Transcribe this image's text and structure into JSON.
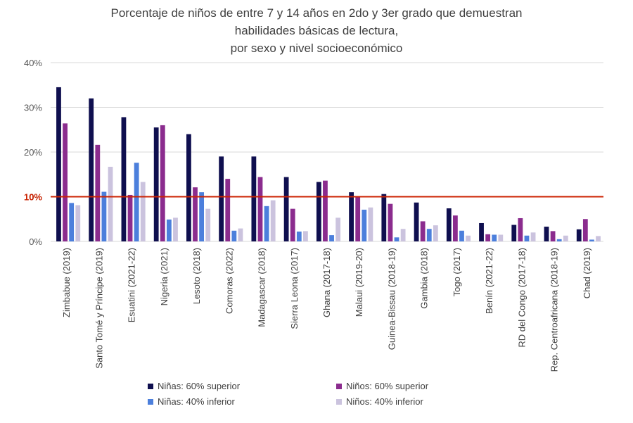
{
  "chart_data": {
    "type": "bar",
    "title_lines": [
      "Porcentaje de niños de entre 7 y 14 años en 2do y 3er grado que demuestran",
      "habilidades básicas de lectura,",
      "por sexo y nivel socioeconómico"
    ],
    "categories": [
      "Zimbabue (2019)",
      "Santo Tomé y Príncipe (2019)",
      "Esuatini (2021-22)",
      "Nigeria (2021)",
      "Lesoto (2018)",
      "Comoras (2022)",
      "Madagascar (2018)",
      "Sierra Leona (2017)",
      "Ghana (2017-18)",
      "Malaui (2019-20)",
      "Guinea-Bissau (2018-19)",
      "Gambia (2018)",
      "Togo (2017)",
      "Benín (2021-22)",
      "RD del Congo (2017-18)",
      "Rep. Centroafricana (2018-19)",
      "Chad (2019)"
    ],
    "series": [
      {
        "name": "Niñas: 60% superior",
        "color": "#0f0f4f",
        "values": [
          34.5,
          32.0,
          27.8,
          25.5,
          24.0,
          19.0,
          19.0,
          14.4,
          13.3,
          11.0,
          10.6,
          8.7,
          7.4,
          4.1,
          3.7,
          3.3,
          2.7
        ]
      },
      {
        "name": "Niños: 60% superior",
        "color": "#8b2c8e",
        "values": [
          26.4,
          21.6,
          10.4,
          26.0,
          12.1,
          14.0,
          14.4,
          7.3,
          13.6,
          10.1,
          8.4,
          4.5,
          5.8,
          1.6,
          5.2,
          2.3,
          5.0
        ]
      },
      {
        "name": "Niñas: 40% inferior",
        "color": "#4c7fdc",
        "values": [
          8.6,
          11.1,
          17.6,
          4.9,
          11.0,
          2.4,
          7.9,
          2.2,
          1.4,
          7.1,
          0.9,
          2.8,
          2.4,
          1.5,
          1.3,
          0.5,
          0.4
        ]
      },
      {
        "name": "Niños: 40% inferior",
        "color": "#cbc3de",
        "values": [
          8.1,
          16.7,
          13.3,
          5.3,
          7.3,
          2.9,
          9.2,
          2.3,
          5.3,
          7.6,
          2.8,
          3.6,
          1.3,
          1.5,
          2.0,
          1.3,
          1.2
        ]
      }
    ],
    "y_ticks": [
      0,
      10,
      20,
      30,
      40
    ],
    "y_tick_labels": [
      "0%",
      "10%",
      "20%",
      "30%",
      "40%"
    ],
    "ylim": [
      0,
      40
    ],
    "reference_line": {
      "value": 10,
      "label": "10%",
      "color": "#cc2200"
    },
    "xlabel": "",
    "ylabel": "",
    "grid": true,
    "legend_position": "bottom"
  }
}
